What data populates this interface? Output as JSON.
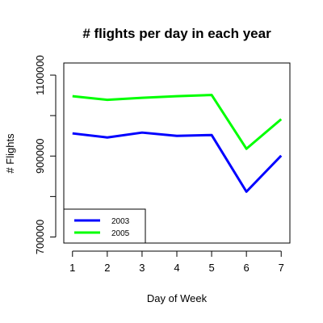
{
  "chart_data": {
    "type": "line",
    "title": "# flights per day in each year",
    "xlabel": "Day of Week",
    "ylabel": "# Flights",
    "x": [
      1,
      2,
      3,
      4,
      5,
      6,
      7
    ],
    "xticks": [
      "1",
      "2",
      "3",
      "4",
      "5",
      "6",
      "7"
    ],
    "yticks": [
      700000,
      900000,
      1100000
    ],
    "ytick_labels": [
      "700000",
      "900000",
      "1100000"
    ],
    "ylim": [
      685000,
      1130000
    ],
    "xlim": [
      0.75,
      7.25
    ],
    "grid": false,
    "legend_position": "bottom-left",
    "series": [
      {
        "name": "2003",
        "color": "#0000ff",
        "values": [
          956000,
          946000,
          958000,
          950000,
          952000,
          812000,
          901000
        ]
      },
      {
        "name": "2005",
        "color": "#00ff00",
        "values": [
          1048000,
          1039000,
          1044000,
          1048000,
          1051000,
          918000,
          991000
        ]
      }
    ]
  }
}
